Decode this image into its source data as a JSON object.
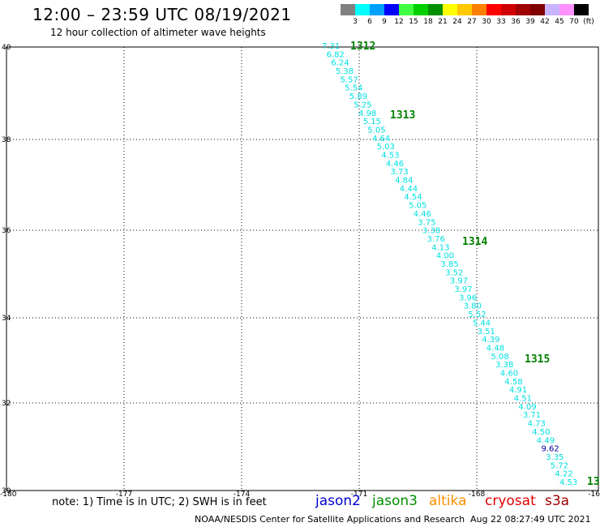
{
  "title": "12:00 – 23:59 UTC 08/19/2021",
  "subtitle": "12 hour collection of altimeter wave heights",
  "legend": {
    "colors": [
      "#808080",
      "#00ffff",
      "#00a0ff",
      "#0000ff",
      "#40ff40",
      "#00d000",
      "#009000",
      "#ffff00",
      "#ffc800",
      "#ff8000",
      "#ff0000",
      "#d00000",
      "#a00000",
      "#800000",
      "#c8b4ff",
      "#ff90ff",
      "#000000"
    ],
    "labels": [
      "3",
      "6",
      "9",
      "12",
      "15",
      "18",
      "21",
      "24",
      "27",
      "30",
      "33",
      "36",
      "39",
      "42",
      "45",
      "70",
      "(ft)"
    ]
  },
  "axes": {
    "y_ticks": [
      "40",
      "38",
      "36",
      "34",
      "32",
      "30"
    ],
    "x_ticks": [
      "-180",
      "-177",
      "-174",
      "-171",
      "-168",
      "-16"
    ]
  },
  "track_color": "#00e0e0",
  "track": [
    {
      "v": "7.31"
    },
    {
      "v": "6.82"
    },
    {
      "v": "6.24"
    },
    {
      "v": "5.38"
    },
    {
      "v": "5.57"
    },
    {
      "v": "5.54"
    },
    {
      "v": "5.89"
    },
    {
      "v": "5.25"
    },
    {
      "v": "4.98"
    },
    {
      "v": "5.15"
    },
    {
      "v": "5.05"
    },
    {
      "v": "4.64"
    },
    {
      "v": "5.03"
    },
    {
      "v": "4.53"
    },
    {
      "v": "4.46"
    },
    {
      "v": "3.73"
    },
    {
      "v": "4.84"
    },
    {
      "v": "4.44"
    },
    {
      "v": "4.54"
    },
    {
      "v": "5.05"
    },
    {
      "v": "4.46"
    },
    {
      "v": "3.75"
    },
    {
      "v": "3.38"
    },
    {
      "v": "3.76"
    },
    {
      "v": "4.13"
    },
    {
      "v": "4.00"
    },
    {
      "v": "3.85"
    },
    {
      "v": "3.52"
    },
    {
      "v": "3.97"
    },
    {
      "v": "3.97"
    },
    {
      "v": "3.96"
    },
    {
      "v": "3.80"
    },
    {
      "v": "5.52"
    },
    {
      "v": "5.44"
    },
    {
      "v": "3.51"
    },
    {
      "v": "4.39"
    },
    {
      "v": "4.48"
    },
    {
      "v": "5.08"
    },
    {
      "v": "3.38"
    },
    {
      "v": "4.60"
    },
    {
      "v": "4.58"
    },
    {
      "v": "4.91"
    },
    {
      "v": "4.51"
    },
    {
      "v": "4.09"
    },
    {
      "v": "3.71"
    },
    {
      "v": "4.73"
    },
    {
      "v": "4.50"
    },
    {
      "v": "4.49"
    },
    {
      "v": "9.62",
      "color": "#0000a0"
    },
    {
      "v": "3.35"
    },
    {
      "v": "5.72"
    },
    {
      "v": "4.22"
    },
    {
      "v": "4.53"
    }
  ],
  "times": [
    {
      "label": "1312",
      "color": "#008000"
    },
    {
      "label": "1313",
      "color": "#008000"
    },
    {
      "label": "1314",
      "color": "#008000"
    },
    {
      "label": "1315",
      "color": "#008000"
    },
    {
      "label": "13",
      "color": "#008000"
    }
  ],
  "note": "note:  1) Time is in UTC;  2) SWH is in feet",
  "satellites": [
    {
      "name": "jason2",
      "color": "#0000d0"
    },
    {
      "name": "jason3",
      "color": "#009000"
    },
    {
      "name": "altika",
      "color": "#ff9000"
    },
    {
      "name": "cryosat",
      "color": "#e00000"
    },
    {
      "name": "s3a",
      "color": "#a00000"
    }
  ],
  "footer": {
    "center": "NOAA/NESDIS Center for Satellite Applications and Research",
    "timestamp": "Aug 22 08:27:49 UTC 2021"
  }
}
